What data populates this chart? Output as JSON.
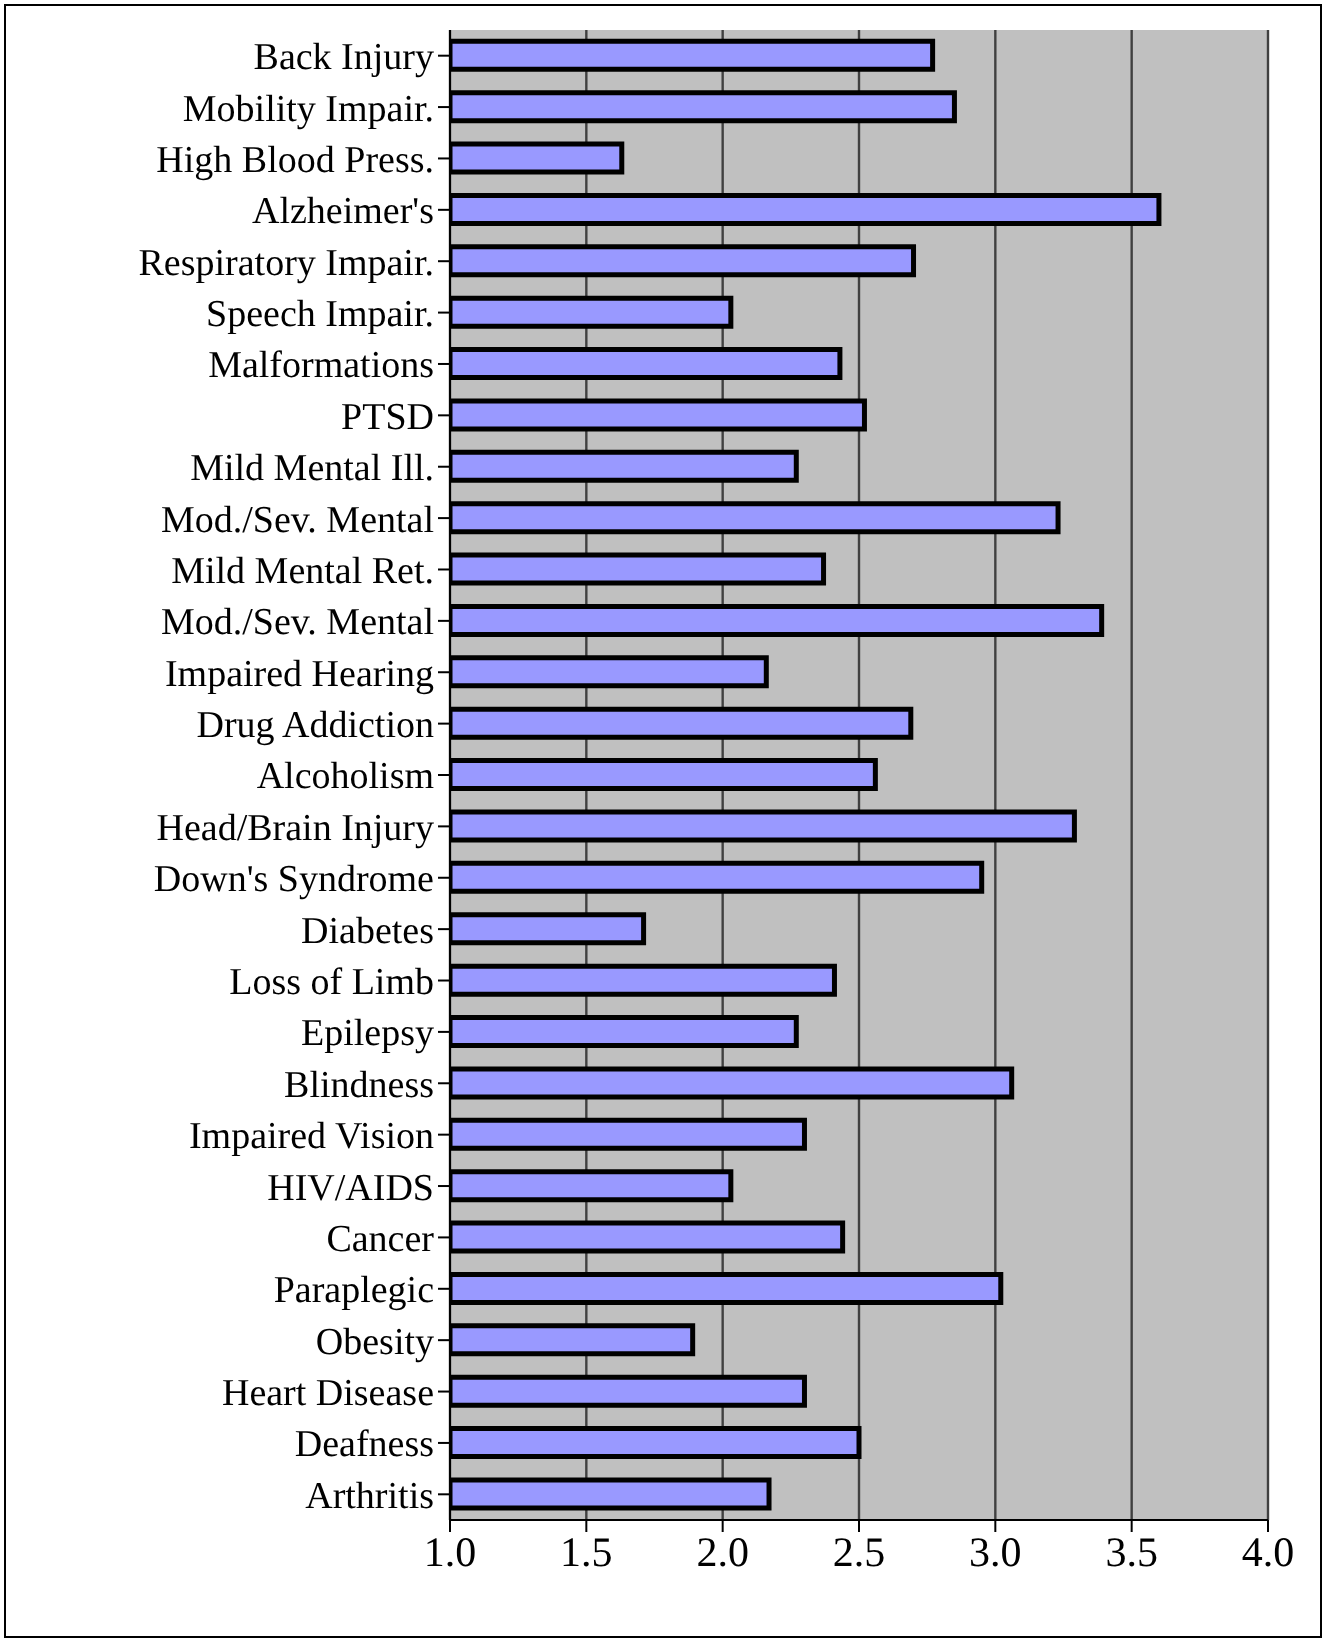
{
  "chart_data": {
    "type": "bar",
    "orientation": "horizontal",
    "categories": [
      "Back Injury",
      "Mobility Impair.",
      "High Blood Press.",
      "Alzheimer's",
      "Respiratory Impair.",
      "Speech Impair.",
      "Malformations",
      "PTSD",
      "Mild Mental Ill.",
      "Mod./Sev. Mental",
      "Mild Mental Ret.",
      "Mod./Sev. Mental",
      "Impaired Hearing",
      "Drug Addiction",
      "Alcoholism",
      "Head/Brain Injury",
      "Down's Syndrome",
      "Diabetes",
      "Loss of Limb",
      "Epilepsy",
      "Blindness",
      "Impaired Vision",
      "HIV/AIDS",
      "Cancer",
      "Paraplegic",
      "Obesity",
      "Heart Disease",
      "Deafness",
      "Arthritis"
    ],
    "values": [
      2.77,
      2.85,
      1.63,
      3.6,
      2.7,
      2.03,
      2.43,
      2.52,
      2.27,
      3.23,
      2.37,
      3.39,
      2.16,
      2.69,
      2.56,
      3.29,
      2.95,
      1.71,
      2.41,
      2.27,
      3.06,
      2.3,
      2.03,
      2.44,
      3.02,
      1.89,
      2.3,
      2.5,
      2.17
    ],
    "color": "#9999ff",
    "xlim": [
      1,
      4
    ],
    "xticks": [
      {
        "value": 1,
        "label": "1.0"
      },
      {
        "value": 1.5,
        "label": "1.5"
      },
      {
        "value": 2,
        "label": "2.0"
      },
      {
        "value": 2.5,
        "label": "2.5"
      },
      {
        "value": 3,
        "label": "3.0"
      },
      {
        "value": 3.5,
        "label": "3.5"
      },
      {
        "value": 4,
        "label": "4.0"
      }
    ],
    "grid": "x"
  }
}
